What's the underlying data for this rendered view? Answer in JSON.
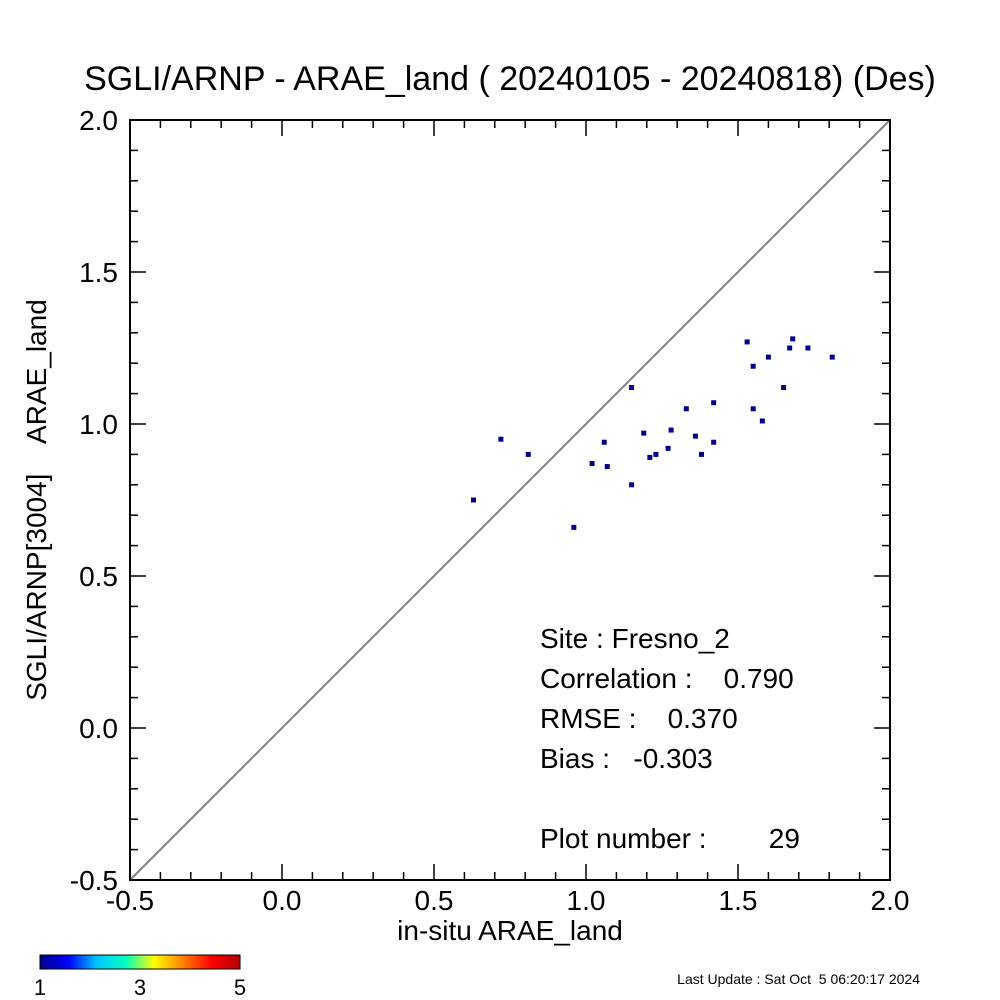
{
  "chart_data": {
    "type": "scatter",
    "title": "SGLI/ARNP - ARAE_land ( 20240105 - 20240818) (Des)",
    "xlabel": "in-situ ARAE_land",
    "ylabel": "SGLI/ARNP[3004]    ARAE_land",
    "xlim": [
      -0.5,
      2.0
    ],
    "ylim": [
      -0.5,
      2.0
    ],
    "x_ticks": [
      "-0.5",
      "0.0",
      "0.5",
      "1.0",
      "1.5",
      "2.0"
    ],
    "y_ticks": [
      "-0.5",
      "0.0",
      "0.5",
      "1.0",
      "1.5",
      "2.0"
    ],
    "reference_line": "1:1",
    "points": [
      {
        "x": 0.63,
        "y": 0.75
      },
      {
        "x": 0.72,
        "y": 0.95
      },
      {
        "x": 0.81,
        "y": 0.9
      },
      {
        "x": 0.96,
        "y": 0.66
      },
      {
        "x": 1.02,
        "y": 0.87
      },
      {
        "x": 1.06,
        "y": 0.94
      },
      {
        "x": 1.07,
        "y": 0.86
      },
      {
        "x": 1.15,
        "y": 1.12
      },
      {
        "x": 1.15,
        "y": 0.8
      },
      {
        "x": 1.19,
        "y": 0.97
      },
      {
        "x": 1.21,
        "y": 0.89
      },
      {
        "x": 1.23,
        "y": 0.9
      },
      {
        "x": 1.27,
        "y": 0.92
      },
      {
        "x": 1.28,
        "y": 0.98
      },
      {
        "x": 1.33,
        "y": 1.05
      },
      {
        "x": 1.36,
        "y": 0.96
      },
      {
        "x": 1.38,
        "y": 0.9
      },
      {
        "x": 1.42,
        "y": 1.07
      },
      {
        "x": 1.42,
        "y": 0.94
      },
      {
        "x": 1.53,
        "y": 1.27
      },
      {
        "x": 1.55,
        "y": 1.19
      },
      {
        "x": 1.55,
        "y": 1.05
      },
      {
        "x": 1.58,
        "y": 1.01
      },
      {
        "x": 1.6,
        "y": 1.22
      },
      {
        "x": 1.65,
        "y": 1.12
      },
      {
        "x": 1.67,
        "y": 1.25
      },
      {
        "x": 1.68,
        "y": 1.28
      },
      {
        "x": 1.73,
        "y": 1.25
      },
      {
        "x": 1.81,
        "y": 1.22
      }
    ],
    "point_color": "#00008b",
    "stats": {
      "site": "Site : Fresno_2",
      "correlation": "Correlation :    0.790",
      "rmse": "RMSE :    0.370",
      "bias": "Bias :   -0.303",
      "plot_number": "Plot number :        29"
    },
    "colorbar": {
      "labels": [
        "1",
        "3",
        "5"
      ],
      "colors": [
        "#00008b",
        "#0000ff",
        "#00c8ff",
        "#00ffc0",
        "#ffff00",
        "#ff8000",
        "#ff0000",
        "#b00000"
      ]
    },
    "last_update": "Last Update : Sat Oct  5 06:20:17 2024"
  }
}
